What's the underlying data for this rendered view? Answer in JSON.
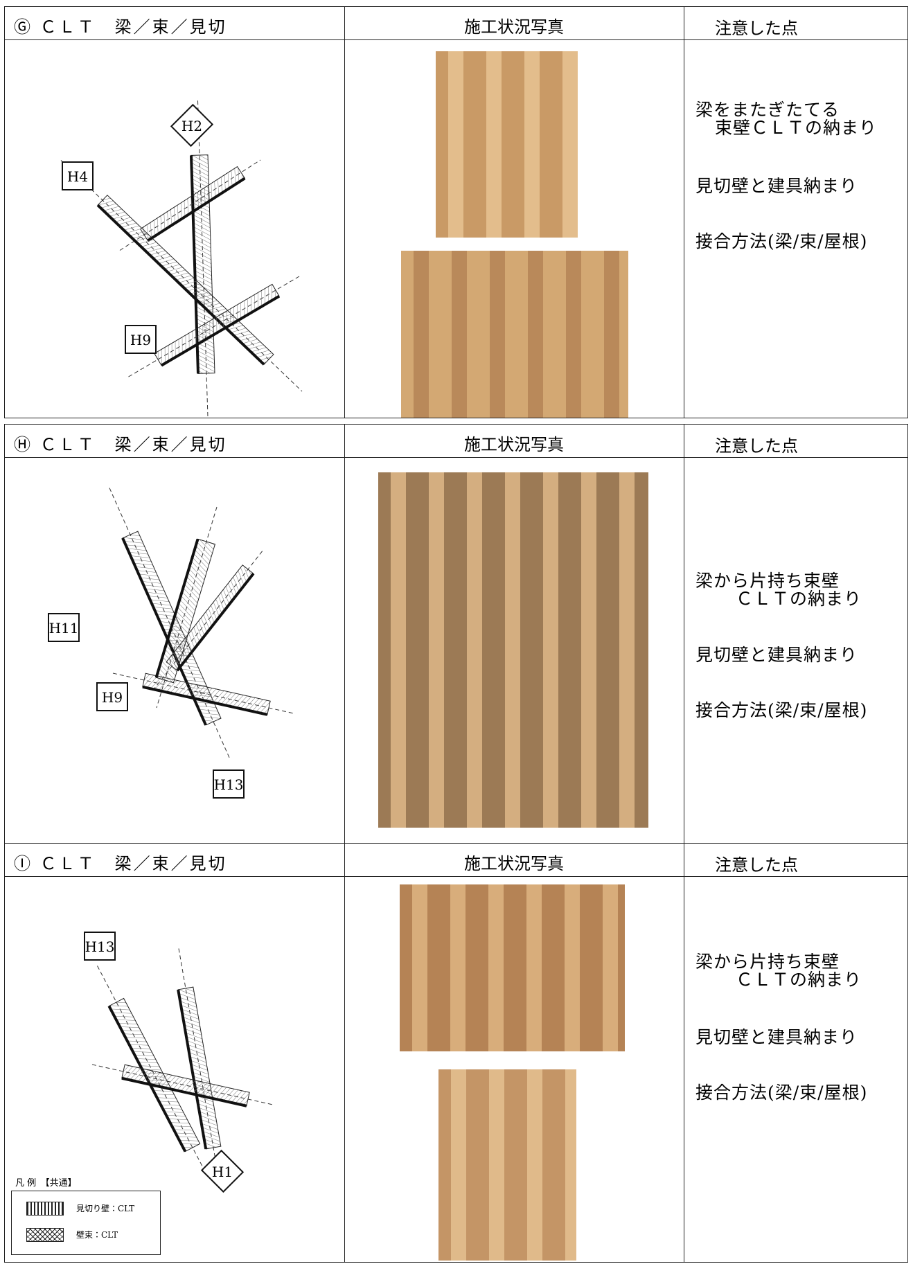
{
  "sections": [
    {
      "label": "Ⓖ ＣＬＴ　梁／束／見切",
      "photo_header": "施工状況写真",
      "notes_header": "注意した点",
      "diagram_labels": [
        "H2",
        "H4",
        "H9"
      ],
      "notes": [
        [
          "梁をまたぎたてる",
          "束壁ＣＬＴの納まり"
        ],
        [
          "見切壁と建具納まり"
        ],
        [
          "接合方法(梁/束/屋根)"
        ]
      ]
    },
    {
      "label": "Ⓗ ＣＬＴ　梁／束／見切",
      "photo_header": "施工状況写真",
      "notes_header": "注意した点",
      "diagram_labels": [
        "H11",
        "H9",
        "H13"
      ],
      "notes": [
        [
          "梁から片持ち束壁",
          "ＣＬＴの納まり"
        ],
        [
          "見切壁と建具納まり"
        ],
        [
          "接合方法(梁/束/屋根)"
        ]
      ]
    },
    {
      "label": "Ⓘ ＣＬＴ　梁／束／見切",
      "photo_header": "施工状況写真",
      "notes_header": "注意した点",
      "diagram_labels": [
        "H13",
        "H1"
      ],
      "notes": [
        [
          "梁から片持ち束壁",
          "ＣＬＴの納まり"
        ],
        [
          "見切壁と建具納まり"
        ],
        [
          "接合方法(梁/束/屋根)"
        ]
      ]
    }
  ],
  "legend": {
    "title": "凡 例　【共通】",
    "items": [
      "見切り壁：CLT",
      "壁束：CLT"
    ]
  }
}
